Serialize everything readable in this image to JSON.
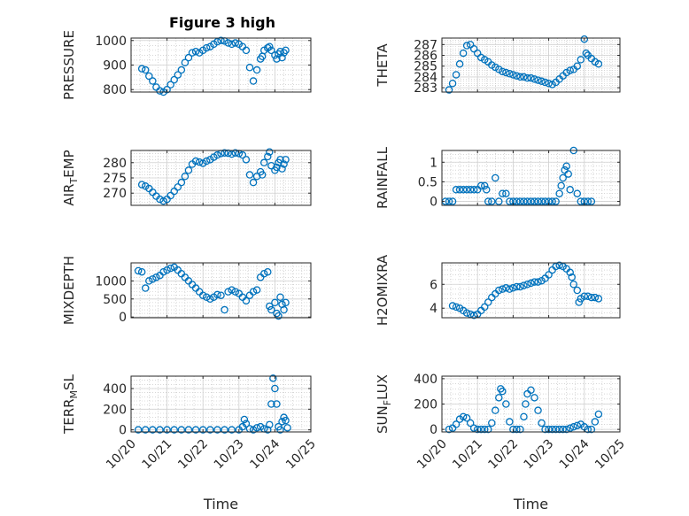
{
  "figure": {
    "title": "Figure 3 high"
  },
  "colors": {
    "marker": "#0072BD",
    "axis": "#262626",
    "grid": "#bfbfbf"
  },
  "chart_data": [
    {
      "id": "pressure",
      "type": "scatter",
      "ylabel": "PRESSURE",
      "xlim": [
        10.0,
        25.0
      ],
      "ylim": [
        790,
        1010
      ],
      "yticks": [
        800,
        900,
        1000
      ],
      "ytick_labels": [
        "800",
        "900",
        "1000"
      ],
      "x": [
        20.3,
        20.4,
        20.5,
        20.6,
        20.7,
        20.8,
        20.9,
        21.0,
        21.1,
        21.2,
        21.3,
        21.4,
        21.5,
        21.6,
        21.7,
        21.8,
        21.9,
        22.0,
        22.1,
        22.2,
        22.3,
        22.4,
        22.5,
        22.6,
        22.7,
        22.8,
        22.9,
        23.0,
        23.1,
        23.2,
        23.3,
        23.4,
        23.5,
        23.6,
        23.65,
        23.7,
        23.8,
        23.85,
        23.9,
        24.0,
        24.05,
        24.1,
        24.15,
        24.2,
        24.25,
        24.3
      ],
      "y": [
        885,
        880,
        855,
        835,
        810,
        795,
        790,
        800,
        820,
        840,
        860,
        880,
        910,
        930,
        950,
        955,
        950,
        960,
        970,
        975,
        985,
        995,
        1000,
        998,
        990,
        985,
        990,
        985,
        975,
        960,
        890,
        835,
        880,
        925,
        935,
        960,
        970,
        975,
        960,
        940,
        925,
        945,
        955,
        930,
        950,
        960
      ]
    },
    {
      "id": "theta",
      "type": "scatter",
      "ylabel": "THETA",
      "xlim": [
        10.0,
        25.0
      ],
      "ylim": [
        282.6,
        287.6
      ],
      "yticks": [
        283,
        284,
        285,
        286,
        287
      ],
      "ytick_labels": [
        "283",
        "284",
        "285",
        "286",
        "287"
      ],
      "x": [
        20.2,
        20.3,
        20.4,
        20.5,
        20.6,
        20.7,
        20.8,
        20.9,
        21.0,
        21.1,
        21.2,
        21.3,
        21.4,
        21.5,
        21.6,
        21.7,
        21.8,
        21.9,
        22.0,
        22.1,
        22.2,
        22.3,
        22.4,
        22.5,
        22.6,
        22.7,
        22.8,
        22.9,
        23.0,
        23.1,
        23.2,
        23.3,
        23.4,
        23.5,
        23.6,
        23.7,
        23.8,
        23.9,
        24.0,
        24.05,
        24.1,
        24.2,
        24.3,
        24.4
      ],
      "y": [
        282.8,
        283.4,
        284.2,
        285.2,
        286.2,
        286.9,
        287.0,
        286.6,
        286.2,
        285.8,
        285.6,
        285.4,
        285.1,
        284.9,
        284.7,
        284.5,
        284.4,
        284.3,
        284.2,
        284.1,
        284.0,
        284.0,
        283.9,
        283.9,
        283.8,
        283.7,
        283.6,
        283.5,
        283.4,
        283.3,
        283.5,
        283.8,
        284.1,
        284.4,
        284.6,
        284.7,
        285.0,
        285.6,
        287.5,
        286.2,
        286.0,
        285.7,
        285.4,
        285.2
      ]
    },
    {
      "id": "air_temp",
      "type": "scatter",
      "ylabel": "AIR_TEMP",
      "xlim": [
        10.0,
        25.0
      ],
      "ylim": [
        266,
        284
      ],
      "yticks": [
        270,
        275,
        280
      ],
      "ytick_labels": [
        "270",
        "275",
        "280"
      ],
      "x": [
        20.3,
        20.4,
        20.5,
        20.6,
        20.7,
        20.8,
        20.9,
        21.0,
        21.1,
        21.2,
        21.3,
        21.4,
        21.5,
        21.6,
        21.7,
        21.8,
        21.9,
        22.0,
        22.1,
        22.2,
        22.3,
        22.4,
        22.5,
        22.6,
        22.7,
        22.8,
        22.9,
        23.0,
        23.1,
        23.2,
        23.3,
        23.4,
        23.5,
        23.6,
        23.65,
        23.7,
        23.8,
        23.85,
        23.9,
        24.0,
        24.05,
        24.1,
        24.15,
        24.2,
        24.25,
        24.3
      ],
      "y": [
        272.8,
        272.3,
        271.5,
        270.3,
        269.0,
        268.0,
        267.4,
        268.0,
        269.2,
        270.6,
        272.0,
        273.5,
        275.5,
        277.5,
        279.5,
        280.5,
        280.2,
        279.8,
        280.5,
        281.0,
        281.8,
        282.5,
        283.0,
        283.2,
        283.1,
        282.8,
        283.2,
        283.0,
        282.5,
        281.0,
        276.0,
        273.5,
        275.5,
        277.0,
        276.0,
        280.0,
        282.0,
        283.5,
        279.0,
        277.5,
        278.5,
        280.0,
        281.0,
        278.0,
        279.5,
        281.0
      ]
    },
    {
      "id": "rainfall",
      "type": "scatter",
      "ylabel": "RAINFALL",
      "xlim": [
        10.0,
        25.0
      ],
      "ylim": [
        -0.1,
        1.3
      ],
      "yticks": [
        0,
        0.5,
        1
      ],
      "ytick_labels": [
        "0",
        "0.5",
        "1"
      ],
      "x": [
        20.1,
        20.2,
        20.3,
        20.4,
        20.5,
        20.6,
        20.7,
        20.8,
        20.9,
        21.0,
        21.1,
        21.2,
        21.25,
        21.3,
        21.4,
        21.5,
        21.6,
        21.7,
        21.8,
        21.9,
        22.0,
        22.1,
        22.2,
        22.3,
        22.4,
        22.5,
        22.6,
        22.7,
        22.8,
        22.9,
        23.0,
        23.1,
        23.2,
        23.3,
        23.35,
        23.4,
        23.45,
        23.5,
        23.55,
        23.6,
        23.7,
        23.8,
        23.9,
        24.0,
        24.1,
        24.2
      ],
      "y": [
        0,
        0,
        0,
        0.3,
        0.3,
        0.3,
        0.3,
        0.3,
        0.3,
        0.3,
        0.4,
        0.4,
        0.3,
        0,
        0,
        0.6,
        0,
        0.2,
        0.2,
        0,
        0,
        0,
        0,
        0,
        0,
        0,
        0,
        0,
        0,
        0,
        0,
        0,
        0,
        0.2,
        0.4,
        0.6,
        0.8,
        0.9,
        0.7,
        0.3,
        1.3,
        0.2,
        0,
        0,
        0,
        0
      ]
    },
    {
      "id": "mixdepth",
      "type": "scatter",
      "ylabel": "MIXDEPTH",
      "xlim": [
        10.0,
        25.0
      ],
      "ylim": [
        -20,
        1500
      ],
      "yticks": [
        0,
        500,
        1000
      ],
      "ytick_labels": [
        "0",
        "500",
        "1000"
      ],
      "x": [
        20.2,
        20.3,
        20.4,
        20.5,
        20.6,
        20.7,
        20.8,
        20.9,
        21.0,
        21.1,
        21.2,
        21.3,
        21.4,
        21.5,
        21.6,
        21.7,
        21.8,
        21.9,
        22.0,
        22.1,
        22.2,
        22.3,
        22.4,
        22.5,
        22.6,
        22.7,
        22.8,
        22.9,
        23.0,
        23.1,
        23.2,
        23.3,
        23.4,
        23.5,
        23.6,
        23.7,
        23.8,
        23.85,
        23.9,
        24.0,
        24.05,
        24.1,
        24.15,
        24.2,
        24.25,
        24.3
      ],
      "y": [
        1280,
        1250,
        800,
        1000,
        1050,
        1100,
        1150,
        1250,
        1300,
        1350,
        1380,
        1300,
        1200,
        1100,
        1000,
        900,
        800,
        700,
        600,
        550,
        500,
        550,
        620,
        600,
        200,
        700,
        750,
        700,
        650,
        550,
        450,
        600,
        700,
        750,
        1100,
        1200,
        1250,
        300,
        200,
        400,
        100,
        30,
        550,
        350,
        200,
        400
      ]
    },
    {
      "id": "h2omixra",
      "type": "scatter",
      "ylabel": "H2OMIXRA",
      "xlim": [
        10.0,
        25.0
      ],
      "ylim": [
        3.2,
        7.8
      ],
      "yticks": [
        4,
        6
      ],
      "ytick_labels": [
        "4",
        "6"
      ],
      "x": [
        20.3,
        20.4,
        20.5,
        20.6,
        20.7,
        20.8,
        20.9,
        21.0,
        21.1,
        21.2,
        21.3,
        21.4,
        21.5,
        21.6,
        21.7,
        21.8,
        21.9,
        22.0,
        22.1,
        22.2,
        22.3,
        22.4,
        22.5,
        22.6,
        22.7,
        22.8,
        22.9,
        23.0,
        23.1,
        23.2,
        23.3,
        23.4,
        23.5,
        23.6,
        23.65,
        23.7,
        23.8,
        23.85,
        23.9,
        24.0,
        24.1,
        24.2,
        24.3,
        24.4
      ],
      "y": [
        4.2,
        4.1,
        4.0,
        3.8,
        3.6,
        3.5,
        3.4,
        3.5,
        3.8,
        4.1,
        4.5,
        4.9,
        5.2,
        5.5,
        5.6,
        5.7,
        5.6,
        5.7,
        5.8,
        5.8,
        5.9,
        6.0,
        6.1,
        6.2,
        6.2,
        6.3,
        6.5,
        6.8,
        7.2,
        7.5,
        7.6,
        7.5,
        7.3,
        7.0,
        6.6,
        6.0,
        5.5,
        4.5,
        4.8,
        5.0,
        5.0,
        4.9,
        4.9,
        4.8
      ]
    },
    {
      "id": "terr_msl",
      "type": "scatter",
      "ylabel": "TERR_MSL",
      "xlim": [
        10.0,
        25.0
      ],
      "ylim": [
        -20,
        520
      ],
      "yticks": [
        0,
        200,
        400
      ],
      "ytick_labels": [
        "0",
        "200",
        "400"
      ],
      "x": [
        20.2,
        20.4,
        20.6,
        20.8,
        21.0,
        21.2,
        21.4,
        21.6,
        21.8,
        22.0,
        22.2,
        22.4,
        22.6,
        22.8,
        23.0,
        23.1,
        23.15,
        23.2,
        23.3,
        23.4,
        23.5,
        23.6,
        23.7,
        23.8,
        23.85,
        23.9,
        23.95,
        24.0,
        24.05,
        24.1,
        24.15,
        24.2,
        24.25,
        24.3,
        24.35
      ],
      "y": [
        0,
        0,
        0,
        0,
        0,
        0,
        0,
        0,
        0,
        0,
        0,
        0,
        0,
        0,
        0,
        30,
        100,
        60,
        10,
        0,
        20,
        30,
        10,
        0,
        50,
        250,
        500,
        400,
        250,
        30,
        0,
        80,
        120,
        90,
        20
      ]
    },
    {
      "id": "sun_flux",
      "type": "scatter",
      "ylabel": "SUN_FLUX",
      "xlim": [
        10.0,
        25.0
      ],
      "ylim": [
        -20,
        420
      ],
      "yticks": [
        0,
        200,
        400
      ],
      "ytick_labels": [
        "0",
        "200",
        "400"
      ],
      "x": [
        20.2,
        20.3,
        20.4,
        20.5,
        20.6,
        20.7,
        20.8,
        20.9,
        21.0,
        21.1,
        21.2,
        21.3,
        21.4,
        21.5,
        21.6,
        21.65,
        21.7,
        21.8,
        21.9,
        22.0,
        22.1,
        22.2,
        22.3,
        22.35,
        22.4,
        22.5,
        22.6,
        22.7,
        22.8,
        22.9,
        23.0,
        23.1,
        23.2,
        23.3,
        23.4,
        23.5,
        23.6,
        23.7,
        23.8,
        23.9,
        24.0,
        24.1,
        24.2,
        24.3,
        24.4
      ],
      "y": [
        0,
        10,
        40,
        80,
        100,
        90,
        50,
        10,
        0,
        0,
        0,
        0,
        50,
        150,
        250,
        320,
        300,
        200,
        60,
        0,
        0,
        0,
        100,
        200,
        280,
        310,
        250,
        150,
        50,
        0,
        0,
        0,
        0,
        0,
        0,
        0,
        10,
        20,
        30,
        40,
        20,
        0,
        0,
        60,
        120
      ]
    }
  ],
  "x_axis": {
    "tick_values": [
      20,
      21,
      22,
      23,
      24,
      25
    ],
    "tick_labels": [
      "10/20",
      "10/21",
      "10/22",
      "10/23",
      "10/24",
      "10/25"
    ],
    "label": "Time"
  }
}
